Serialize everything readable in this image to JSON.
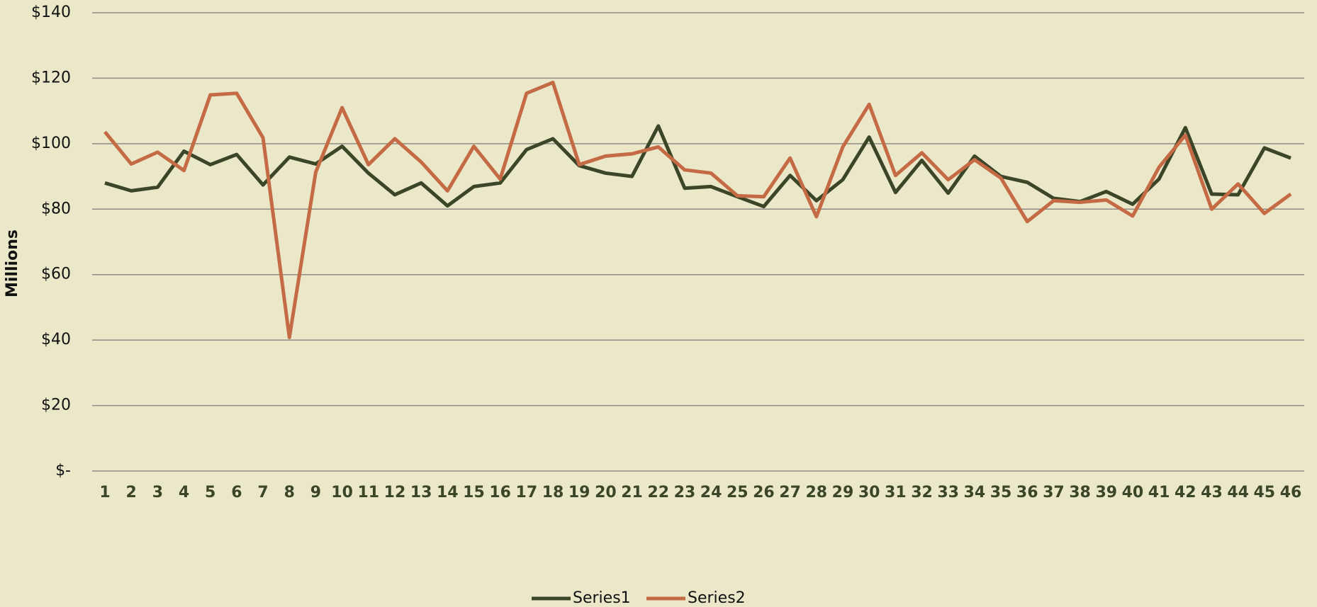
{
  "chart_data": {
    "type": "line",
    "y_label": "Millions",
    "categories": [
      "1",
      "2",
      "3",
      "4",
      "5",
      "6",
      "7",
      "8",
      "9",
      "10",
      "11",
      "12",
      "13",
      "14",
      "15",
      "16",
      "17",
      "18",
      "19",
      "20",
      "21",
      "22",
      "23",
      "24",
      "25",
      "26",
      "27",
      "28",
      "29",
      "30",
      "31",
      "32",
      "33",
      "34",
      "35",
      "36",
      "37",
      "38",
      "39",
      "40",
      "41",
      "42",
      "43",
      "44",
      "45",
      "46"
    ],
    "series": [
      {
        "name": "Series1",
        "color": "#3b4527",
        "values": [
          88,
          85.6,
          86.7,
          97.7,
          93.6,
          96.7,
          87.4,
          95.9,
          93.8,
          99.2,
          91,
          84.4,
          88,
          81,
          86.9,
          88,
          98.2,
          101.5,
          93.3,
          91,
          90,
          105.4,
          86.4,
          86.9,
          83.8,
          80.8,
          90.3,
          82.6,
          89,
          102,
          85.1,
          94.9,
          84.9,
          96.2,
          90,
          88.2,
          83.3,
          82.3,
          85.4,
          81.5,
          89.2,
          104.9,
          84.6,
          84.4,
          98.7,
          95.6
        ]
      },
      {
        "name": "Series2",
        "color": "#c46a45",
        "values": [
          103.6,
          93.8,
          97.4,
          91.8,
          114.9,
          115.4,
          101.8,
          40.8,
          91.3,
          111,
          93.6,
          101.5,
          94.4,
          85.6,
          99.2,
          89.2,
          115.4,
          118.7,
          93.6,
          96.2,
          96.9,
          99,
          92,
          91,
          84.1,
          83.8,
          95.6,
          77.7,
          99,
          112,
          90.3,
          97.2,
          89,
          95.1,
          89.5,
          76.2,
          82.6,
          82.1,
          82.8,
          77.9,
          92.8,
          102.6,
          80,
          87.7,
          78.7,
          84.6
        ]
      }
    ],
    "ylim": [
      0,
      140
    ],
    "yticks": [
      {
        "value": 0,
        "label": "$-"
      },
      {
        "value": 20,
        "label": "$20"
      },
      {
        "value": 40,
        "label": "$40"
      },
      {
        "value": 60,
        "label": "$60"
      },
      {
        "value": 80,
        "label": "$80"
      },
      {
        "value": 100,
        "label": "$100"
      },
      {
        "value": 120,
        "label": "$120"
      },
      {
        "value": 140,
        "label": "$140"
      }
    ],
    "grid": true,
    "legend": "bottom"
  }
}
